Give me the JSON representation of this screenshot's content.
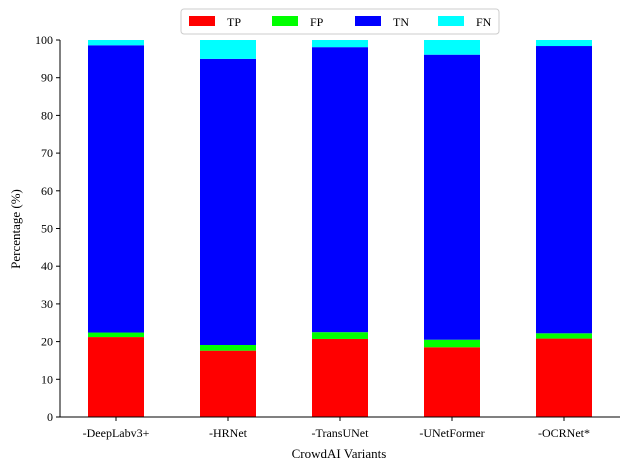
{
  "chart_data": {
    "type": "bar",
    "stacked": true,
    "xlabel": "CrowdAI Variants",
    "ylabel": "Percentage (%)",
    "ylim": [
      0,
      100
    ],
    "yticks": [
      0,
      10,
      20,
      30,
      40,
      50,
      60,
      70,
      80,
      90,
      100
    ],
    "grid": false,
    "legend": {
      "placement": "top-center"
    },
    "categories": [
      "-DeepLabv3+",
      "-HRNet",
      "-TransUNet",
      "-UNetFormer",
      "-OCRNet*"
    ],
    "series": [
      {
        "name": "TP",
        "color": "#ff0000",
        "values": [
          21.2,
          17.6,
          20.7,
          18.5,
          20.8
        ]
      },
      {
        "name": "FP",
        "color": "#00ff00",
        "values": [
          1.2,
          1.5,
          1.8,
          2.0,
          1.4
        ]
      },
      {
        "name": "TN",
        "color": "#0000ff",
        "values": [
          76.2,
          75.9,
          75.6,
          75.6,
          76.2
        ]
      },
      {
        "name": "FN",
        "color": "#00ffff",
        "values": [
          1.4,
          5.0,
          1.9,
          3.9,
          1.6
        ]
      }
    ]
  }
}
